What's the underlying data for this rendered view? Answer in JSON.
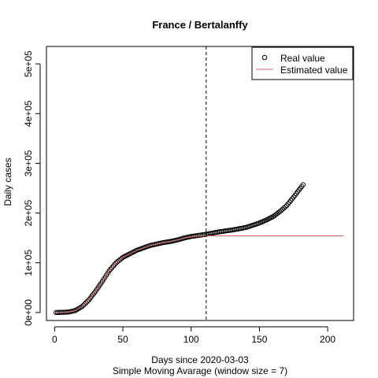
{
  "chart_data": {
    "type": "line",
    "title": "France / Bertalanffy",
    "xlabel": "Days since 2020-03-03",
    "subtitle": "Simple Moving Avarage (window size = 7)",
    "ylabel": "Daily cases",
    "xlim": [
      -6,
      219
    ],
    "ylim": [
      -16000,
      535000
    ],
    "x_ticks": [
      0,
      50,
      100,
      150,
      200
    ],
    "x_tick_labels": [
      "0",
      "50",
      "100",
      "150",
      "200"
    ],
    "y_ticks": [
      0,
      100000,
      200000,
      300000,
      400000,
      500000
    ],
    "y_tick_labels": [
      "0e+00",
      "1e+05",
      "2e+05",
      "3e+05",
      "4e+05",
      "5e+05"
    ],
    "vline_x": 111,
    "legend": {
      "position": "top-right",
      "entries": [
        "Real value",
        "Estimated value"
      ]
    },
    "colors": {
      "real": "#000000",
      "estimated": "#d46a6a"
    },
    "series": [
      {
        "name": "Real value",
        "kind": "points",
        "x_start": 1,
        "x_end": 182,
        "keypoints": [
          [
            1,
            0
          ],
          [
            10,
            1000
          ],
          [
            15,
            4000
          ],
          [
            20,
            12000
          ],
          [
            25,
            25000
          ],
          [
            30,
            43000
          ],
          [
            35,
            63000
          ],
          [
            40,
            84000
          ],
          [
            45,
            100000
          ],
          [
            50,
            111000
          ],
          [
            55,
            118000
          ],
          [
            60,
            125000
          ],
          [
            65,
            130000
          ],
          [
            70,
            135000
          ],
          [
            75,
            138000
          ],
          [
            80,
            141000
          ],
          [
            85,
            143000
          ],
          [
            90,
            146000
          ],
          [
            95,
            150000
          ],
          [
            100,
            153000
          ],
          [
            110,
            157000
          ],
          [
            120,
            162000
          ],
          [
            130,
            166000
          ],
          [
            140,
            171000
          ],
          [
            150,
            180000
          ],
          [
            155,
            186000
          ],
          [
            160,
            193000
          ],
          [
            165,
            203000
          ],
          [
            170,
            215000
          ],
          [
            175,
            232000
          ],
          [
            180,
            250000
          ],
          [
            182,
            257000
          ]
        ]
      },
      {
        "name": "Estimated value",
        "kind": "line",
        "x_start": 1,
        "x_end": 212,
        "keypoints": [
          [
            1,
            0
          ],
          [
            10,
            1000
          ],
          [
            15,
            4000
          ],
          [
            20,
            12000
          ],
          [
            25,
            25000
          ],
          [
            30,
            43000
          ],
          [
            35,
            63000
          ],
          [
            40,
            84000
          ],
          [
            45,
            100000
          ],
          [
            50,
            111000
          ],
          [
            55,
            118000
          ],
          [
            60,
            125000
          ],
          [
            65,
            130000
          ],
          [
            70,
            135000
          ],
          [
            75,
            138000
          ],
          [
            80,
            141000
          ],
          [
            85,
            143000
          ],
          [
            90,
            146000
          ],
          [
            95,
            150000
          ],
          [
            100,
            152000
          ],
          [
            105,
            153500
          ],
          [
            110,
            154000
          ],
          [
            115,
            154300
          ],
          [
            212,
            154300
          ]
        ]
      }
    ]
  }
}
